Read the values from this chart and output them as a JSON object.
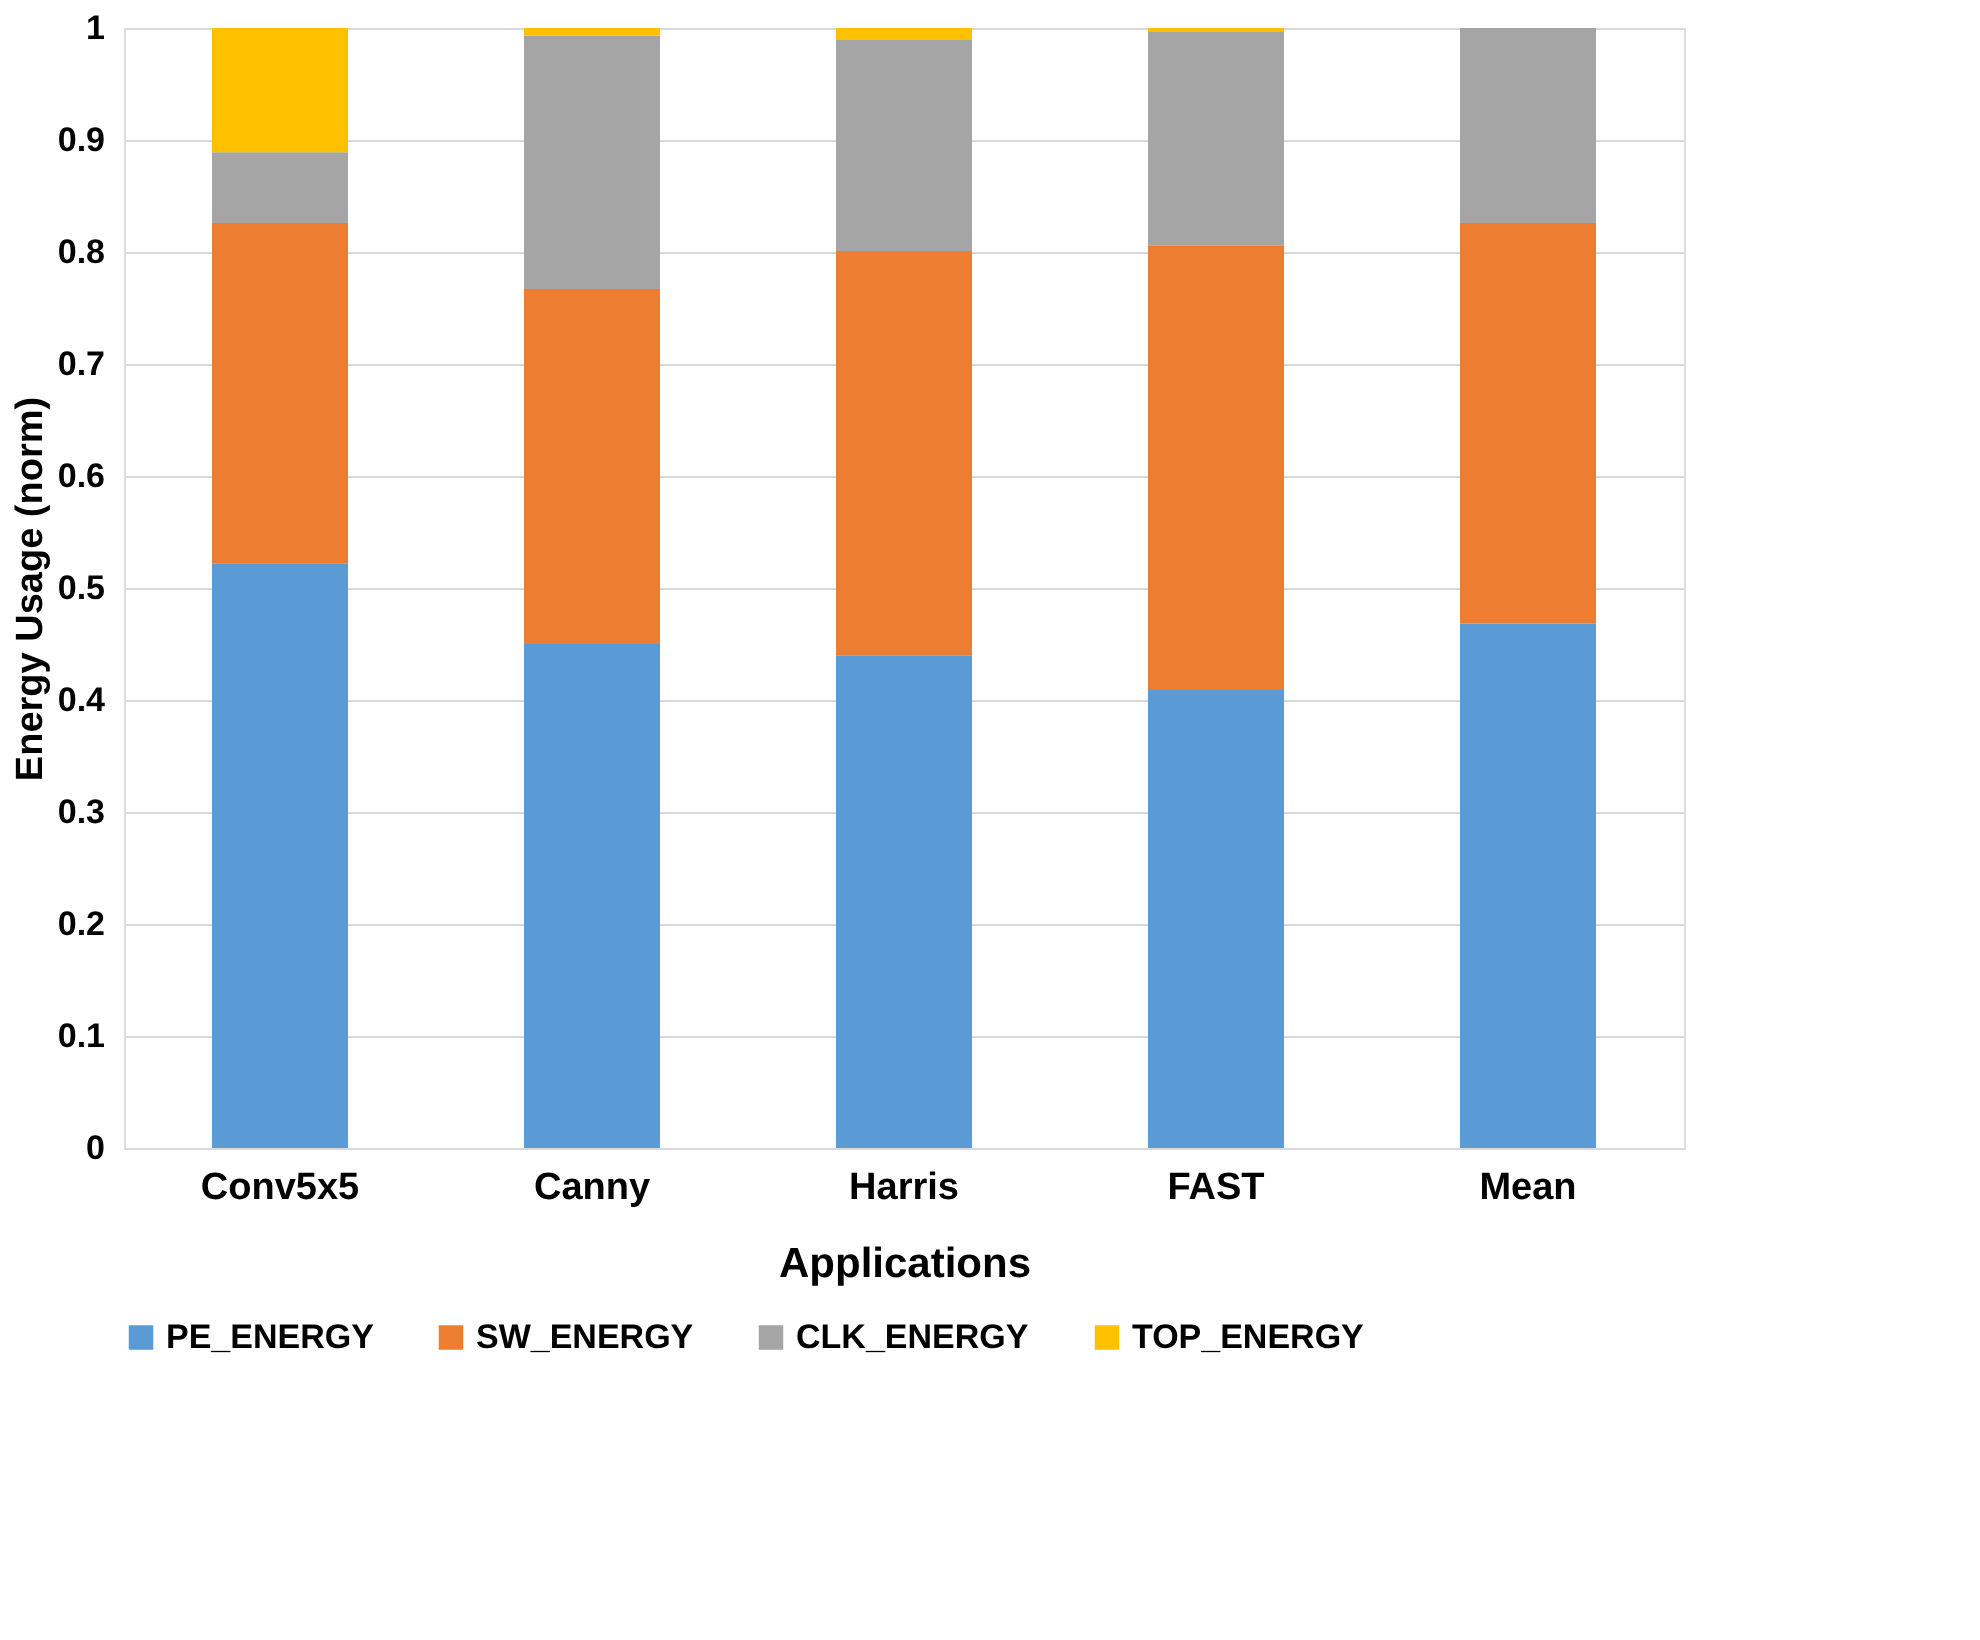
{
  "chart_data": {
    "type": "bar",
    "stacked": true,
    "xlabel": "Applications",
    "ylabel": "Energy Usage (norm)",
    "categories": [
      "Conv5x5",
      "Canny",
      "Harris",
      "FAST",
      "Mean"
    ],
    "series": [
      {
        "name": "PE_ENERGY",
        "color": "#5b9bd5",
        "values": [
          0.522,
          0.45,
          0.44,
          0.409,
          0.468
        ]
      },
      {
        "name": "SW_ENERGY",
        "color": "#ed7d31",
        "values": [
          0.304,
          0.317,
          0.361,
          0.397,
          0.358
        ]
      },
      {
        "name": "CLK_ENERGY",
        "color": "#a5a5a5",
        "values": [
          0.063,
          0.226,
          0.189,
          0.191,
          0.174
        ]
      },
      {
        "name": "TOP_ENERGY",
        "color": "#ffc000",
        "values": [
          0.111,
          0.007,
          0.01,
          0.003,
          0.0
        ]
      }
    ],
    "ylim": [
      0,
      1
    ],
    "yticks": [
      0,
      0.1,
      0.2,
      0.3,
      0.4,
      0.5,
      0.6,
      0.7,
      0.8,
      0.9,
      1
    ],
    "grid": "y",
    "legend": "bottom"
  }
}
